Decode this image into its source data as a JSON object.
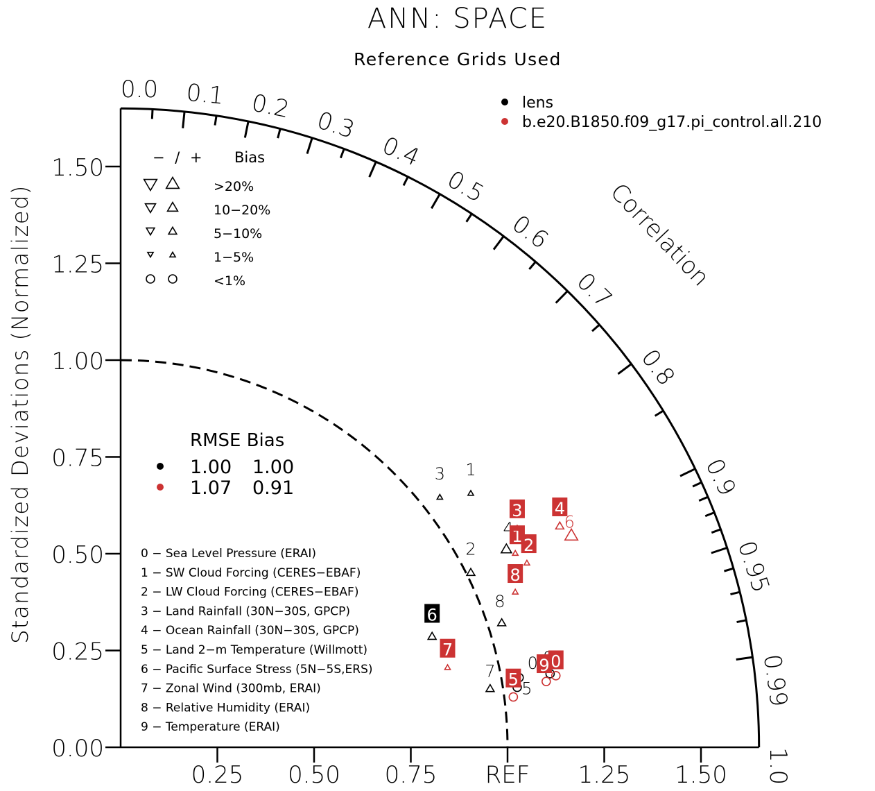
{
  "chart_data": {
    "type": "scatter",
    "subtype": "taylor-diagram",
    "title": "ANN: SPACE",
    "subtitle": "Reference Grids Used",
    "ylabel": "Standardized Deviations (Normalized)",
    "correlation_label": "Correlation",
    "ref_label": "REF",
    "std_range": [
      0,
      1.65
    ],
    "reference_std": 1.0,
    "x_ticks": [
      "0.25",
      "0.50",
      "0.75",
      "1.25",
      "1.50"
    ],
    "x_tick_values": [
      0.25,
      0.5,
      0.75,
      1.25,
      1.5
    ],
    "y_ticks": [
      "0.00",
      "0.25",
      "0.50",
      "0.75",
      "1.00",
      "1.25",
      "1.50"
    ],
    "y_tick_values": [
      0,
      0.25,
      0.5,
      0.75,
      1.0,
      1.25,
      1.5
    ],
    "corr_labels": [
      {
        "text": "0.0",
        "r": 0.0
      },
      {
        "text": "0.1",
        "r": 0.1
      },
      {
        "text": "0.2",
        "r": 0.2
      },
      {
        "text": "0.3",
        "r": 0.3
      },
      {
        "text": "0.4",
        "r": 0.4
      },
      {
        "text": "0.5",
        "r": 0.5
      },
      {
        "text": "0.6",
        "r": 0.6
      },
      {
        "text": "0.7",
        "r": 0.7
      },
      {
        "text": "0.8",
        "r": 0.8
      },
      {
        "text": "0.9",
        "r": 0.9
      },
      {
        "text": "0.95",
        "r": 0.95
      },
      {
        "text": "0.99",
        "r": 0.99
      },
      {
        "text": "1.0",
        "r": 1.0
      }
    ],
    "corr_ticks_major": [
      0.1,
      0.2,
      0.3,
      0.4,
      0.5,
      0.6,
      0.7,
      0.8,
      0.9,
      0.95,
      0.99
    ],
    "corr_ticks_minor": [
      0.05,
      0.15,
      0.25,
      0.35,
      0.45,
      0.55,
      0.65,
      0.75,
      0.85,
      0.91,
      0.92,
      0.93,
      0.94,
      0.96,
      0.97,
      0.98
    ],
    "legend_cases": [
      {
        "name": "lens",
        "color": "#000000"
      },
      {
        "name": "b.e20.B1850.f09_g17.pi_control.all.210",
        "color": "#cc3333"
      }
    ],
    "bias_legend": {
      "header_signs": "− / +",
      "header_label": "Bias",
      "rows": [
        {
          "label": ">20%",
          "size": 3
        },
        {
          "label": "10−20%",
          "size": 2.4
        },
        {
          "label": "5−10%",
          "size": 1.9
        },
        {
          "label": "1−5%",
          "size": 1.3
        },
        {
          "label": "<1%",
          "size": 0
        }
      ]
    },
    "rmse_table": {
      "header": "RMSE Bias",
      "rows": [
        {
          "color": "#000000",
          "rmse": "1.00",
          "bias": "1.00"
        },
        {
          "color": "#cc3333",
          "rmse": "1.07",
          "bias": "0.91"
        }
      ]
    },
    "variables": [
      "0 − Sea Level Pressure (ERAI)",
      "1 − SW Cloud Forcing (CERES−EBAF)",
      "2 − LW Cloud Forcing (CERES−EBAF)",
      "3 − Land Rainfall (30N−30S, GPCP)",
      "4 − Ocean Rainfall (30N−30S, GPCP)",
      "5 − Land 2−m Temperature (Willmott)",
      "6 − Pacific Surface Stress (5N−5S,ERS)",
      "7 − Zonal Wind (300mb, ERAI)",
      "8 − Relative Humidity (ERAI)",
      "9 − Temperature (ERAI)"
    ],
    "series": [
      {
        "name": "lens",
        "color": "#000000",
        "points": [
          {
            "id": "0",
            "x": 1.03,
            "y": 0.18,
            "marker": "circle",
            "size": 0,
            "label_dx": 0.035,
            "label_dy": 0.04,
            "boxed": false
          },
          {
            "id": "1",
            "x": 0.905,
            "y": 0.655,
            "marker": "up",
            "size": 1.3,
            "label_dx": 0.0,
            "label_dy": 0.065,
            "boxed": false
          },
          {
            "id": "2",
            "x": 0.905,
            "y": 0.45,
            "marker": "up",
            "size": 1.9,
            "label_dx": 0.0,
            "label_dy": 0.065,
            "boxed": false
          },
          {
            "id": "3",
            "x": 0.825,
            "y": 0.645,
            "marker": "up",
            "size": 1.3,
            "label_dx": 0.0,
            "label_dy": 0.065,
            "boxed": false
          },
          {
            "id": "4",
            "x": 0.997,
            "y": 0.51,
            "marker": "up",
            "size": 2.4,
            "label_dx": 0.005,
            "label_dy": 0.058,
            "boxed": false
          },
          {
            "id": "5",
            "x": 1.025,
            "y": 0.155,
            "marker": "circle",
            "size": 0,
            "label_dx": 0.025,
            "label_dy": 0.0,
            "boxed": false
          },
          {
            "id": "6",
            "x": 0.805,
            "y": 0.285,
            "marker": "up",
            "size": 1.9,
            "label_dx": 0.0,
            "label_dy": 0.06,
            "boxed": true
          },
          {
            "id": "7",
            "x": 0.955,
            "y": 0.15,
            "marker": "up",
            "size": 1.9,
            "label_dx": 0.0,
            "label_dy": 0.05,
            "boxed": false
          },
          {
            "id": "8",
            "x": 0.985,
            "y": 0.32,
            "marker": "up",
            "size": 1.9,
            "label_dx": -0.005,
            "label_dy": 0.06,
            "boxed": false
          },
          {
            "id": "9",
            "x": 1.11,
            "y": 0.19,
            "marker": "circle",
            "size": 0,
            "label_dx": -0.005,
            "label_dy": 0.045,
            "boxed": false
          }
        ]
      },
      {
        "name": "b.e20.B1850.f09_g17.pi_control.all.210",
        "color": "#cc3333",
        "points": [
          {
            "id": "0",
            "x": 1.125,
            "y": 0.185,
            "marker": "circle",
            "size": 0,
            "label_dx": 0.0,
            "label_dy": 0.04,
            "boxed": true
          },
          {
            "id": "1",
            "x": 1.02,
            "y": 0.5,
            "marker": "up",
            "size": 1.3,
            "label_dx": 0.005,
            "label_dy": 0.048,
            "boxed": true
          },
          {
            "id": "2",
            "x": 1.05,
            "y": 0.475,
            "marker": "up",
            "size": 1.3,
            "label_dx": 0.005,
            "label_dy": 0.05,
            "boxed": true
          },
          {
            "id": "3",
            "x": 1.025,
            "y": 0.565,
            "marker": "up",
            "size": 1.3,
            "label_dx": 0.0,
            "label_dy": 0.05,
            "boxed": true
          },
          {
            "id": "4",
            "x": 1.135,
            "y": 0.57,
            "marker": "up",
            "size": 1.9,
            "label_dx": 0.0,
            "label_dy": 0.05,
            "boxed": true
          },
          {
            "id": "5",
            "x": 1.015,
            "y": 0.13,
            "marker": "circle",
            "size": 0,
            "label_dx": 0.0,
            "label_dy": 0.048,
            "boxed": true
          },
          {
            "id": "6",
            "x": 1.165,
            "y": 0.545,
            "marker": "up",
            "size": 3,
            "label_dx": -0.005,
            "label_dy": 0.04,
            "boxed": false
          },
          {
            "id": "7",
            "x": 0.845,
            "y": 0.205,
            "marker": "up",
            "size": 1.3,
            "label_dx": 0.0,
            "label_dy": 0.05,
            "boxed": true
          },
          {
            "id": "8",
            "x": 1.02,
            "y": 0.4,
            "marker": "up",
            "size": 1.3,
            "label_dx": 0.0,
            "label_dy": 0.048,
            "boxed": true
          },
          {
            "id": "9",
            "x": 1.1,
            "y": 0.17,
            "marker": "circle",
            "size": 0,
            "label_dx": -0.005,
            "label_dy": 0.045,
            "boxed": true
          }
        ]
      }
    ]
  }
}
